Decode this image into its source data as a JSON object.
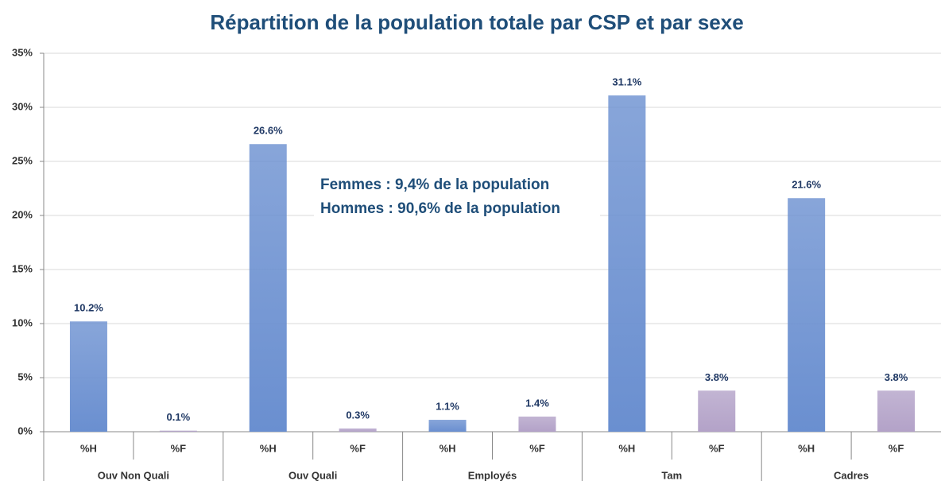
{
  "chart_data": {
    "type": "bar",
    "title": "Répartition de la population totale par CSP et par sexe",
    "categories": [
      "Ouv Non Quali",
      "Ouv Quali",
      "Employés",
      "Tam",
      "Cadres"
    ],
    "series": [
      {
        "name": "%H",
        "color": "#6a8fd0",
        "values": [
          10.2,
          26.6,
          1.1,
          31.1,
          21.6
        ],
        "value_labels": [
          "10.2%",
          "26.6%",
          "1.1%",
          "31.1%",
          "21.6%"
        ]
      },
      {
        "name": "%F",
        "color": "#b3a2c8",
        "values": [
          0.1,
          0.3,
          1.4,
          3.8,
          3.8
        ],
        "value_labels": [
          "0.1%",
          "0.3%",
          "1.4%",
          "3.8%",
          "3.8%"
        ]
      }
    ],
    "annotations": [
      "Femmes : 9,4% de la population",
      "Hommes : 90,6% de la population"
    ],
    "ylim": [
      0,
      35
    ],
    "yticks": [
      {
        "value": 0,
        "label": "0%"
      },
      {
        "value": 5,
        "label": "5%"
      },
      {
        "value": 10,
        "label": "10%"
      },
      {
        "value": 15,
        "label": "15%"
      },
      {
        "value": 20,
        "label": "20%"
      },
      {
        "value": 25,
        "label": "25%"
      },
      {
        "value": 30,
        "label": "30%"
      },
      {
        "value": 35,
        "label": "35%"
      }
    ],
    "grid": true
  }
}
